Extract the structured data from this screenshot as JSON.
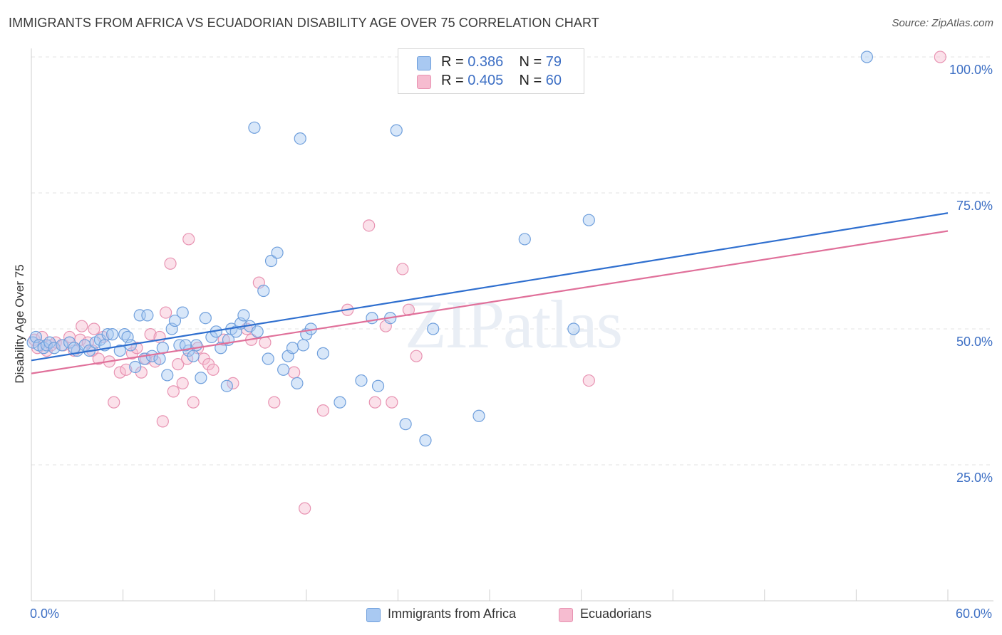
{
  "chart_data": {
    "type": "scatter",
    "title": "IMMIGRANTS FROM AFRICA VS ECUADORIAN DISABILITY AGE OVER 75 CORRELATION CHART",
    "source": "Source: ZipAtlas.com",
    "xlabel": "",
    "ylabel": "Disability Age Over 75",
    "xlim": [
      0,
      60
    ],
    "ylim": [
      0,
      100
    ],
    "x_tick_labels": {
      "min": "0.0%",
      "max": "60.0%"
    },
    "y_ticks": [
      {
        "value": 25,
        "label": "25.0%"
      },
      {
        "value": 50,
        "label": "50.0%"
      },
      {
        "value": 75,
        "label": "75.0%"
      },
      {
        "value": 100,
        "label": "100.0%"
      }
    ],
    "grid": true,
    "watermark": "ZIPatlas",
    "colors": {
      "blue_fill": "#a9c9f2",
      "blue_stroke": "#6f9fdc",
      "blue_line": "#2f6fcf",
      "pink_fill": "#f6bcd0",
      "pink_stroke": "#e893b2",
      "pink_line": "#e0709a",
      "accent_text": "#3d6fc4"
    },
    "legend": {
      "series": [
        {
          "r_label": "R =",
          "r_value": "0.386",
          "n_label": "N =",
          "n_value": "79"
        },
        {
          "r_label": "R =",
          "r_value": "0.405",
          "n_label": "N =",
          "n_value": "60"
        }
      ]
    },
    "series": [
      {
        "name": "Immigrants from Africa",
        "color": "blue",
        "regression": {
          "x": [
            0,
            60
          ],
          "y": [
            44.2,
            71.3
          ]
        },
        "points": [
          [
            0.1,
            47.5
          ],
          [
            0.3,
            48.5
          ],
          [
            0.5,
            47
          ],
          [
            0.8,
            46.5
          ],
          [
            1,
            47
          ],
          [
            1.2,
            47.5
          ],
          [
            1.5,
            46.5
          ],
          [
            2,
            47
          ],
          [
            2.5,
            47.5
          ],
          [
            3,
            46
          ],
          [
            3.5,
            47
          ],
          [
            3.8,
            46
          ],
          [
            4.2,
            47.5
          ],
          [
            4.5,
            48
          ],
          [
            5,
            49
          ],
          [
            5.3,
            49
          ],
          [
            5.8,
            46
          ],
          [
            6.1,
            49
          ],
          [
            6.3,
            48.5
          ],
          [
            6.8,
            43
          ],
          [
            7.1,
            52.5
          ],
          [
            7.4,
            44.5
          ],
          [
            7.6,
            52.5
          ],
          [
            7.9,
            45
          ],
          [
            8.4,
            44.5
          ],
          [
            8.6,
            46.5
          ],
          [
            8.9,
            41.5
          ],
          [
            9.2,
            50
          ],
          [
            9.4,
            51.5
          ],
          [
            9.7,
            47
          ],
          [
            9.9,
            53
          ],
          [
            10.3,
            46
          ],
          [
            10.6,
            45
          ],
          [
            10.8,
            47
          ],
          [
            11.1,
            41
          ],
          [
            11.4,
            52
          ],
          [
            11.8,
            48.5
          ],
          [
            12.1,
            49.5
          ],
          [
            12.4,
            46.5
          ],
          [
            12.8,
            39.5
          ],
          [
            13.1,
            50
          ],
          [
            13.4,
            49.5
          ],
          [
            13.7,
            51
          ],
          [
            13.9,
            52.5
          ],
          [
            14.3,
            50.5
          ],
          [
            14.6,
            87
          ],
          [
            14.8,
            49.5
          ],
          [
            15.2,
            57
          ],
          [
            15.5,
            44.5
          ],
          [
            15.7,
            62.5
          ],
          [
            16.1,
            64
          ],
          [
            16.5,
            42.5
          ],
          [
            16.8,
            45
          ],
          [
            17.1,
            46.5
          ],
          [
            17.4,
            40
          ],
          [
            17.6,
            85
          ],
          [
            18,
            49
          ],
          [
            18.3,
            50
          ],
          [
            19.1,
            45.5
          ],
          [
            20.2,
            36.5
          ],
          [
            21.6,
            40.5
          ],
          [
            22.7,
            39.5
          ],
          [
            23.9,
            86.5
          ],
          [
            23.5,
            52
          ],
          [
            24.5,
            32.5
          ],
          [
            25.8,
            29.5
          ],
          [
            26.3,
            50
          ],
          [
            29.3,
            34
          ],
          [
            32.3,
            66.5
          ],
          [
            35.5,
            50
          ],
          [
            36.5,
            70
          ],
          [
            54.7,
            100
          ],
          [
            2.8,
            46.5
          ],
          [
            4.8,
            47
          ],
          [
            10.1,
            47
          ],
          [
            12.9,
            48
          ],
          [
            17.8,
            47
          ],
          [
            22.3,
            52
          ],
          [
            6.5,
            47
          ]
        ]
      },
      {
        "name": "Ecuadorians",
        "color": "pink",
        "regression": {
          "x": [
            0,
            60
          ],
          "y": [
            41.8,
            68.0
          ]
        },
        "points": [
          [
            0.2,
            48
          ],
          [
            0.4,
            46.5
          ],
          [
            0.7,
            48.5
          ],
          [
            1,
            46
          ],
          [
            1.3,
            47
          ],
          [
            1.6,
            47.5
          ],
          [
            2.1,
            47
          ],
          [
            2.5,
            48.5
          ],
          [
            2.8,
            46
          ],
          [
            3.2,
            48
          ],
          [
            3.3,
            50.5
          ],
          [
            3.7,
            47.5
          ],
          [
            4,
            46
          ],
          [
            4.1,
            50
          ],
          [
            4.4,
            44.5
          ],
          [
            4.7,
            48.5
          ],
          [
            5.1,
            44
          ],
          [
            5.4,
            36.5
          ],
          [
            5.8,
            42
          ],
          [
            6.2,
            42.5
          ],
          [
            6.6,
            45.5
          ],
          [
            6.9,
            46.5
          ],
          [
            7.2,
            42
          ],
          [
            7.5,
            44.5
          ],
          [
            7.8,
            49
          ],
          [
            8.1,
            44
          ],
          [
            8.4,
            48.5
          ],
          [
            8.6,
            33
          ],
          [
            8.8,
            53
          ],
          [
            9.1,
            62
          ],
          [
            9.3,
            38.5
          ],
          [
            9.6,
            43.5
          ],
          [
            9.9,
            40
          ],
          [
            10.2,
            44.5
          ],
          [
            10.3,
            66.5
          ],
          [
            10.6,
            36.5
          ],
          [
            10.9,
            46.5
          ],
          [
            11.3,
            44.5
          ],
          [
            11.6,
            43.5
          ],
          [
            11.9,
            42.5
          ],
          [
            12.6,
            48
          ],
          [
            13.2,
            40
          ],
          [
            14.1,
            50
          ],
          [
            14.4,
            48
          ],
          [
            14.9,
            58.5
          ],
          [
            15.3,
            47.5
          ],
          [
            15.9,
            36.5
          ],
          [
            17.2,
            42
          ],
          [
            17.9,
            17
          ],
          [
            19.1,
            35
          ],
          [
            20.7,
            53.5
          ],
          [
            22.1,
            69
          ],
          [
            22.5,
            36.5
          ],
          [
            23.2,
            50.5
          ],
          [
            23.6,
            36.5
          ],
          [
            24.3,
            61
          ],
          [
            24.7,
            53.5
          ],
          [
            25.2,
            45
          ],
          [
            36.5,
            40.5
          ],
          [
            59.5,
            100
          ]
        ]
      }
    ]
  }
}
